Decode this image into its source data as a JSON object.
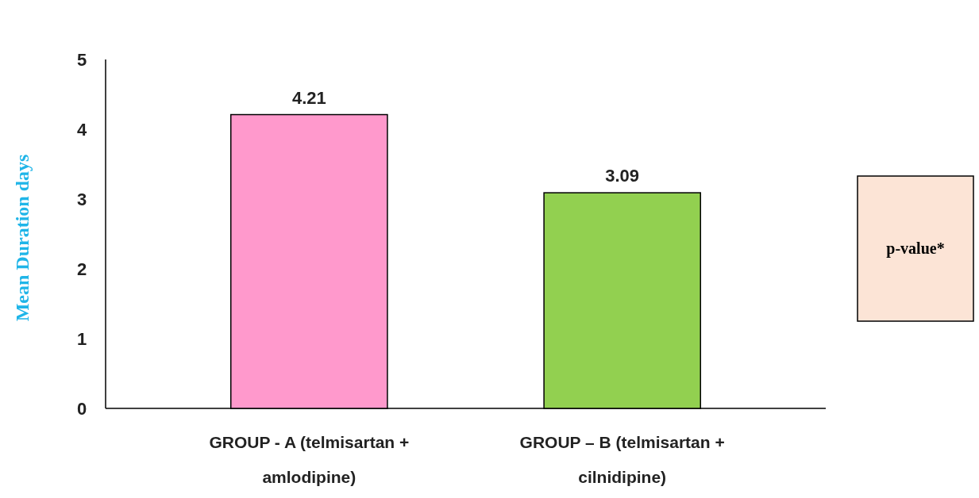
{
  "chart_data": {
    "type": "bar",
    "ylabel": "Mean Duration days",
    "categories": [
      "GROUP - A (telmisartan + amlodipine)",
      "GROUP – B (telmisartan + cilnidipine)"
    ],
    "values": [
      4.21,
      3.09
    ],
    "colors": [
      "#ff99cc",
      "#92d050"
    ],
    "ylim": [
      0,
      5
    ],
    "yticks": [
      0,
      1,
      2,
      3,
      4,
      5
    ],
    "data_labels": true,
    "annotations": [
      "p-value*"
    ]
  }
}
